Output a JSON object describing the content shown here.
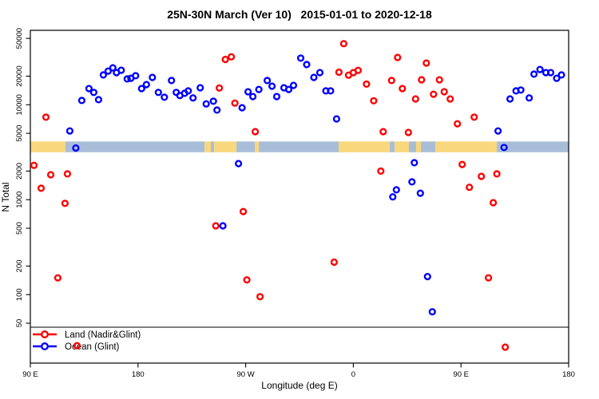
{
  "chart_data": {
    "type": "scatter",
    "title": "25N-30N March (Ver 10)   2015-01-01 to 2020-12-18",
    "xlabel": "Longitude (deg E)",
    "ylabel": "N Total",
    "x_axis": {
      "min": 90,
      "max": 540,
      "ticks": [
        {
          "v": 90,
          "label": "90 E"
        },
        {
          "v": 180,
          "label": "180"
        },
        {
          "v": 270,
          "label": "90 W"
        },
        {
          "v": 360,
          "label": "0"
        },
        {
          "v": 450,
          "label": "90 E"
        },
        {
          "v": 540,
          "label": "180"
        }
      ]
    },
    "y_axis": {
      "scale": "log",
      "min": 19,
      "max": 60800,
      "ticks": [
        {
          "v": 50,
          "label": "50"
        },
        {
          "v": 100,
          "label": "100"
        },
        {
          "v": 200,
          "label": "200"
        },
        {
          "v": 500,
          "label": "500"
        },
        {
          "v": 1000,
          "label": "1000"
        },
        {
          "v": 2000,
          "label": "2000"
        },
        {
          "v": 5000,
          "label": "5000"
        },
        {
          "v": 10000,
          "label": "10000"
        },
        {
          "v": 20000,
          "label": "20000"
        },
        {
          "v": 50000,
          "label": "50000"
        }
      ]
    },
    "map_band": {
      "value_top": 4100,
      "value_bottom": 3160,
      "land_color": "#F9D77D",
      "ocean_color": "#A8BED8",
      "segments": [
        {
          "from": 90,
          "to": 119.4,
          "type": "land"
        },
        {
          "from": 119.4,
          "to": 235.6,
          "type": "ocean"
        },
        {
          "from": 235.6,
          "to": 240.9,
          "type": "land"
        },
        {
          "from": 240.9,
          "to": 243.6,
          "type": "ocean"
        },
        {
          "from": 243.6,
          "to": 262.3,
          "type": "land"
        },
        {
          "from": 262.3,
          "to": 277.6,
          "type": "ocean"
        },
        {
          "from": 277.6,
          "to": 281.0,
          "type": "land"
        },
        {
          "from": 281.0,
          "to": 347.7,
          "type": "ocean"
        },
        {
          "from": 347.7,
          "to": 390.5,
          "type": "land"
        },
        {
          "from": 390.5,
          "to": 394.5,
          "type": "ocean"
        },
        {
          "from": 394.5,
          "to": 406.5,
          "type": "land"
        },
        {
          "from": 406.5,
          "to": 412.5,
          "type": "ocean"
        },
        {
          "from": 412.5,
          "to": 416.5,
          "type": "land"
        },
        {
          "from": 416.5,
          "to": 428.5,
          "type": "ocean"
        },
        {
          "from": 428.5,
          "to": 480.0,
          "type": "land"
        },
        {
          "from": 480.0,
          "to": 540.0,
          "type": "ocean"
        }
      ]
    },
    "legend": {
      "position": "bottom-left"
    },
    "series": [
      {
        "name": "Land (Nadir&Glint)",
        "color": "#FF0000",
        "points": [
          [
            103,
            7400
          ],
          [
            253,
            30000
          ],
          [
            258,
            32000
          ],
          [
            248,
            15000
          ],
          [
            261,
            10400
          ],
          [
            278,
            5200
          ],
          [
            348,
            22000
          ],
          [
            352,
            44000
          ],
          [
            356,
            20500
          ],
          [
            360,
            21800
          ],
          [
            364,
            23000
          ],
          [
            371,
            16500
          ],
          [
            377,
            11000
          ],
          [
            385,
            5200
          ],
          [
            392,
            18000
          ],
          [
            397,
            31500
          ],
          [
            401,
            14800
          ],
          [
            406,
            5100
          ],
          [
            412,
            11500
          ],
          [
            417,
            18300
          ],
          [
            421,
            27500
          ],
          [
            427,
            12900
          ],
          [
            432,
            18300
          ],
          [
            436,
            13700
          ],
          [
            441,
            11500
          ],
          [
            447,
            6300
          ],
          [
            461,
            7400
          ],
          [
            93,
            2300
          ],
          [
            107,
            1830
          ],
          [
            121,
            1870
          ],
          [
            99,
            1320
          ],
          [
            119,
            915
          ],
          [
            245,
            530
          ],
          [
            268,
            750
          ],
          [
            383,
            2000
          ],
          [
            451,
            2350
          ],
          [
            467,
            1760
          ],
          [
            480,
            1870
          ],
          [
            457,
            1350
          ],
          [
            477,
            930
          ],
          [
            113,
            150
          ],
          [
            271,
            143
          ],
          [
            282,
            95
          ],
          [
            344,
            220
          ],
          [
            473,
            150
          ],
          [
            129,
            29
          ],
          [
            487,
            28
          ]
        ]
      },
      {
        "name": "Ocean (Glint)",
        "color": "#0000FF",
        "points": [
          [
            123,
            5300
          ],
          [
            133,
            11100
          ],
          [
            139,
            14800
          ],
          [
            143,
            13500
          ],
          [
            147,
            11300
          ],
          [
            151,
            20600
          ],
          [
            155,
            22600
          ],
          [
            159,
            24500
          ],
          [
            162,
            21800
          ],
          [
            166,
            23100
          ],
          [
            171,
            18700
          ],
          [
            174,
            19000
          ],
          [
            178,
            20200
          ],
          [
            183,
            14800
          ],
          [
            187,
            16300
          ],
          [
            192,
            19400
          ],
          [
            197,
            13500
          ],
          [
            202,
            12000
          ],
          [
            208,
            18000
          ],
          [
            212,
            13500
          ],
          [
            215,
            12500
          ],
          [
            219,
            13200
          ],
          [
            222,
            14000
          ],
          [
            226,
            11800
          ],
          [
            232,
            15100
          ],
          [
            237,
            10200
          ],
          [
            243,
            10900
          ],
          [
            246,
            8800
          ],
          [
            267,
            9300
          ],
          [
            272,
            13700
          ],
          [
            276,
            12200
          ],
          [
            281,
            14500
          ],
          [
            288,
            18000
          ],
          [
            292,
            15700
          ],
          [
            296,
            12200
          ],
          [
            302,
            15100
          ],
          [
            306,
            14500
          ],
          [
            310,
            16000
          ],
          [
            316,
            31000
          ],
          [
            321,
            26500
          ],
          [
            327,
            19400
          ],
          [
            332,
            21800
          ],
          [
            337,
            14000
          ],
          [
            341,
            14000
          ],
          [
            346,
            7100
          ],
          [
            128,
            3500
          ],
          [
            264,
            2400
          ],
          [
            251,
            530
          ],
          [
            411,
            2450
          ],
          [
            409,
            1540
          ],
          [
            396,
            1270
          ],
          [
            393,
            1070
          ],
          [
            416,
            1170
          ],
          [
            422,
            155
          ],
          [
            426,
            66
          ],
          [
            481,
            5300
          ],
          [
            486,
            3550
          ],
          [
            491,
            11500
          ],
          [
            496,
            14000
          ],
          [
            500,
            14300
          ],
          [
            507,
            11800
          ],
          [
            511,
            21000
          ],
          [
            516,
            23500
          ],
          [
            521,
            21800
          ],
          [
            525,
            21800
          ],
          [
            530,
            19000
          ],
          [
            534,
            20600
          ]
        ]
      }
    ]
  }
}
